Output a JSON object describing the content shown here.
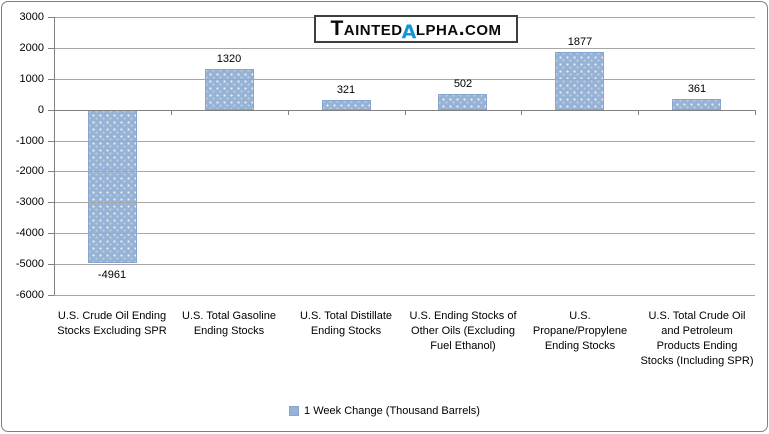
{
  "logo": {
    "text_before_alpha": "Tainted",
    "alpha_glyph": "α",
    "text_after_alpha": "lpha.com",
    "alpha_color": "#1495d9"
  },
  "chart_data": {
    "type": "bar",
    "title": "",
    "categories": [
      "U.S. Crude Oil Ending Stocks Excluding SPR",
      "U.S. Total Gasoline Ending Stocks",
      "U.S. Total Distillate Ending Stocks",
      "U.S. Ending Stocks of Other Oils (Excluding Fuel Ethanol)",
      "U.S. Propane/Propylene Ending Stocks",
      "U.S. Total Crude Oil and Petroleum Products Ending Stocks (Including SPR)"
    ],
    "values": [
      -4961,
      1320,
      321,
      502,
      1877,
      361
    ],
    "data_labels": [
      "-4961",
      "1320",
      "321",
      "502",
      "1877",
      "361"
    ],
    "series": [
      {
        "name": "1 Week Change (Thousand Barrels)",
        "values": [
          -4961,
          1320,
          321,
          502,
          1877,
          361
        ]
      }
    ],
    "legend": "1 Week Change (Thousand Barrels)",
    "legend_position": "bottom",
    "xlabel": "",
    "ylabel": "",
    "ylim": [
      -6000,
      3000
    ],
    "ytick_step": 1000,
    "ytick_labels": [
      "3000",
      "2000",
      "1000",
      "0",
      "-1000",
      "-2000",
      "-3000",
      "-4000",
      "-5000",
      "-6000"
    ],
    "grid": true,
    "gridlines_over_bars": true,
    "colors": {
      "bar_fill": "#95B3D7",
      "bar_border": "#87A5D1",
      "gridline": "#a6a6a6",
      "axis": "#808080",
      "text": "#000000"
    }
  }
}
